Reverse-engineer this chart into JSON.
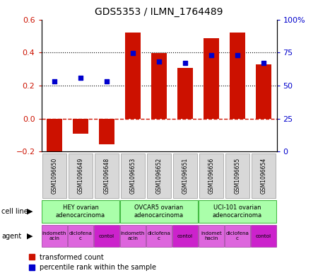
{
  "title": "GDS5353 / ILMN_1764489",
  "samples": [
    "GSM1096650",
    "GSM1096649",
    "GSM1096648",
    "GSM1096653",
    "GSM1096652",
    "GSM1096651",
    "GSM1096656",
    "GSM1096655",
    "GSM1096654"
  ],
  "bar_values": [
    -0.215,
    -0.09,
    -0.155,
    0.52,
    0.395,
    0.305,
    0.485,
    0.52,
    0.33
  ],
  "dot_values": [
    0.225,
    0.245,
    0.225,
    0.395,
    0.345,
    0.335,
    0.385,
    0.385,
    0.335
  ],
  "bar_color": "#cc1100",
  "dot_color": "#0000cc",
  "left_ylim": [
    -0.2,
    0.6
  ],
  "right_ylim": [
    0,
    100
  ],
  "left_yticks": [
    -0.2,
    0.0,
    0.2,
    0.4,
    0.6
  ],
  "right_yticks": [
    0,
    25,
    50,
    75,
    100
  ],
  "right_yticklabels": [
    "0",
    "25",
    "50",
    "75",
    "100%"
  ],
  "hlines": [
    0.2,
    0.4
  ],
  "zero_line_color": "#cc1100",
  "cell_line_labels": [
    "HEY ovarian\nadenocarcinoma",
    "OVCAR5 ovarian\nadenocarcinoma",
    "UCI-101 ovarian\nadenocarcinoma"
  ],
  "cell_line_color": "#aaffaa",
  "cell_line_border_color": "#44bb44",
  "agent_labels": [
    [
      "indometh\nacin",
      "diclofena\nc",
      "contol"
    ],
    [
      "indometh\nacin",
      "diclofena\nc",
      "contol"
    ],
    [
      "indomet\nhacin",
      "diclofena\nc",
      "contol"
    ]
  ],
  "agent_color_light": "#dd66dd",
  "agent_color_dark": "#cc22cc",
  "agent_border_color": "#993399",
  "tick_label_bg": "#d8d8d8",
  "tick_border_color": "#999999"
}
